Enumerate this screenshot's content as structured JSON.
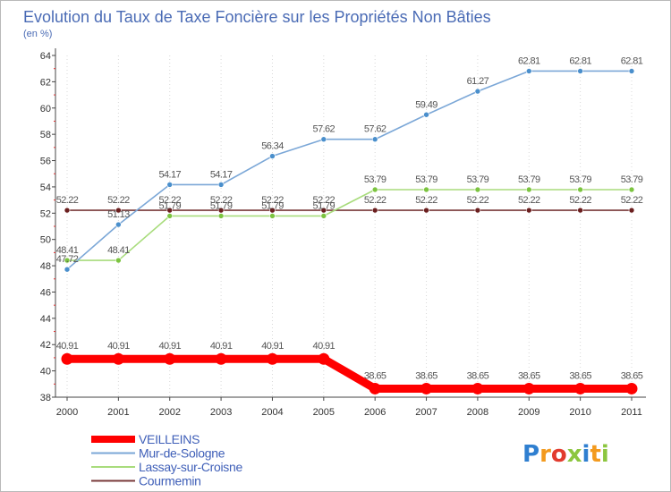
{
  "chart_data": {
    "type": "line",
    "title": "Evolution du Taux de Taxe Foncière sur les Propriétés Non Bâties",
    "subtitle": "(en %)",
    "xlabel": "",
    "ylabel": "",
    "categories": [
      "2000",
      "2001",
      "2002",
      "2003",
      "2004",
      "2005",
      "2006",
      "2007",
      "2008",
      "2009",
      "2010",
      "2011"
    ],
    "ylim": [
      38,
      64
    ],
    "yticks": [
      38,
      40,
      42,
      44,
      46,
      48,
      50,
      52,
      54,
      56,
      58,
      60,
      62,
      64
    ],
    "grid": "vertical dotted",
    "legend_position": "bottom-left",
    "series": [
      {
        "name": "VEILLEINS",
        "color": "#ff0000",
        "values": [
          40.91,
          40.91,
          40.91,
          40.91,
          40.91,
          40.91,
          38.65,
          38.65,
          38.65,
          38.65,
          38.65,
          38.65
        ],
        "labels": [
          "40.91",
          "40.91",
          "40.91",
          "40.91",
          "40.91",
          "40.91",
          "38.65",
          "38.65",
          "38.65",
          "38.65",
          "38.65",
          "38.65"
        ]
      },
      {
        "name": "Mur-de-Sologne",
        "color": "#7ba7d7",
        "marker": "#4a8fcc",
        "values": [
          47.72,
          51.13,
          54.17,
          54.17,
          56.34,
          57.62,
          57.62,
          59.49,
          61.27,
          62.81,
          62.81,
          62.81
        ],
        "labels": [
          "47.72",
          "51.13",
          "54.17",
          "54.17",
          "56.34",
          "57.62",
          "57.62",
          "59.49",
          "61.27",
          "62.81",
          "62.81",
          "62.81"
        ]
      },
      {
        "name": "Lassay-sur-Croisne",
        "color": "#a8dc7c",
        "marker": "#7cc440",
        "values": [
          48.41,
          48.41,
          51.79,
          51.79,
          51.79,
          51.79,
          53.79,
          53.79,
          53.79,
          53.79,
          53.79,
          53.79
        ],
        "labels": [
          "48.41",
          "48.41",
          "51.79",
          "51.79",
          "51.79",
          "51.79",
          "53.79",
          "53.79",
          "53.79",
          "53.79",
          "53.79",
          "53.79"
        ]
      },
      {
        "name": "Courmemin",
        "color": "#7a3a3a",
        "marker": "#6b1f1f",
        "values": [
          52.22,
          52.22,
          52.22,
          52.22,
          52.22,
          52.22,
          52.22,
          52.22,
          52.22,
          52.22,
          52.22,
          52.22
        ],
        "labels": [
          "52.22",
          "52.22",
          "52.22",
          "52.22",
          "52.22",
          "52.22",
          "52.22",
          "52.22",
          "52.22",
          "52.22",
          "52.22",
          "52.22"
        ]
      }
    ]
  },
  "logo": {
    "text": "Proxiti",
    "letters": [
      "P",
      "r",
      "o",
      "x",
      "i",
      "t",
      "i"
    ],
    "colors": [
      "#2f7fd0",
      "#f39a1e",
      "#e23b2e",
      "#8cc63f",
      "#2f7fd0",
      "#f39a1e",
      "#8cc63f"
    ]
  }
}
